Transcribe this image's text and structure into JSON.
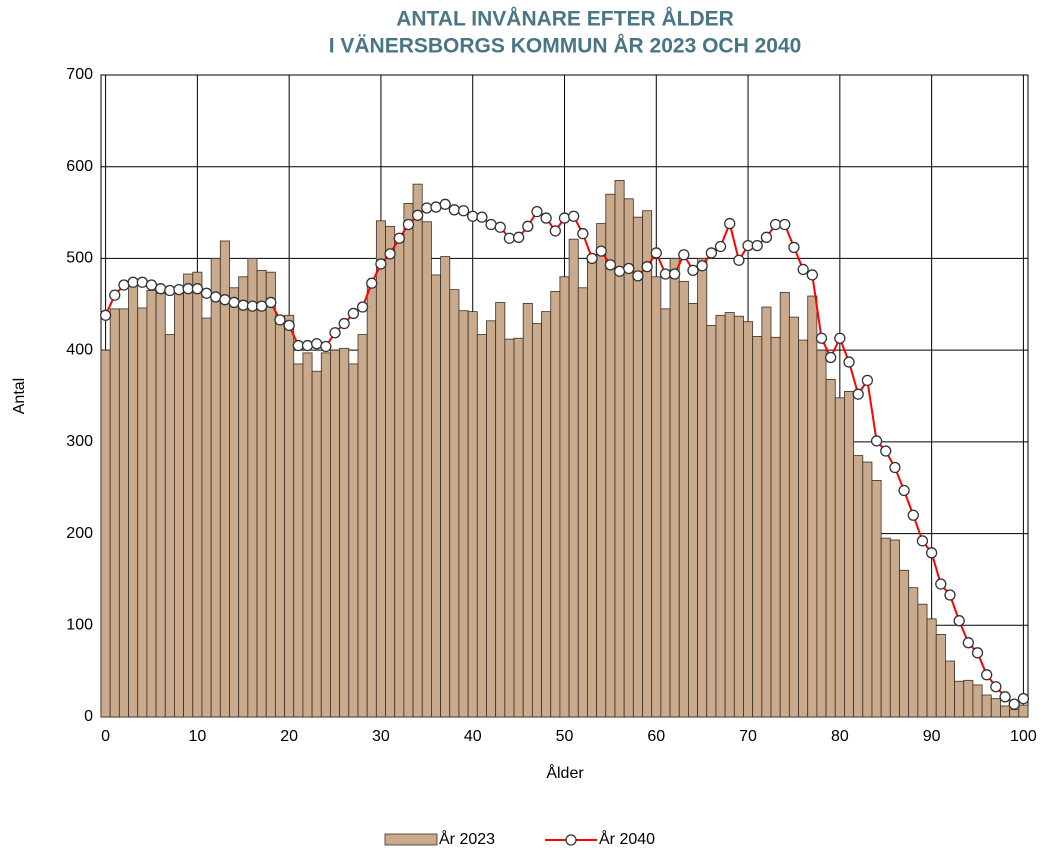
{
  "chart_data": {
    "type": "bar_line",
    "title": [
      "ANTAL INVÅNARE EFTER ÅLDER",
      "I VÄNERSBORGS KOMMUN ÅR 2023 OCH 2040"
    ],
    "x_label": "Ålder",
    "y_label": "Antal",
    "categories": [
      0,
      null,
      null,
      null,
      null,
      null,
      null,
      null,
      null,
      null,
      10,
      null,
      null,
      null,
      null,
      null,
      null,
      null,
      null,
      null,
      20,
      null,
      null,
      null,
      null,
      null,
      null,
      null,
      null,
      null,
      30,
      null,
      null,
      null,
      null,
      null,
      null,
      null,
      null,
      null,
      40,
      null,
      null,
      null,
      null,
      null,
      null,
      null,
      null,
      null,
      50,
      null,
      null,
      null,
      null,
      null,
      null,
      null,
      null,
      null,
      60,
      null,
      null,
      null,
      null,
      null,
      null,
      null,
      null,
      null,
      70,
      null,
      null,
      null,
      null,
      null,
      null,
      null,
      null,
      null,
      80,
      null,
      null,
      null,
      null,
      null,
      null,
      null,
      null,
      null,
      90,
      null,
      null,
      null,
      null,
      null,
      null,
      null,
      null,
      null,
      100
    ],
    "series": [
      {
        "name": "År 2023",
        "kind": "bar",
        "color": "#c9aa8c",
        "values": [
          400,
          445,
          445,
          470,
          446,
          465,
          462,
          417,
          466,
          483,
          485,
          435,
          500,
          519,
          468,
          480,
          500,
          487,
          485,
          435,
          438,
          385,
          397,
          377,
          397,
          400,
          402,
          385,
          417,
          475,
          541,
          535,
          520,
          560,
          581,
          540,
          482,
          502,
          466,
          443,
          442,
          417,
          432,
          452,
          412,
          413,
          451,
          429,
          442,
          464,
          480,
          521,
          468,
          500,
          538,
          570,
          585,
          565,
          545,
          552,
          480,
          445,
          500,
          475,
          451,
          500,
          427,
          438,
          441,
          437,
          431,
          415,
          447,
          414,
          463,
          436,
          411,
          459,
          400,
          368,
          348,
          355,
          285,
          278,
          258,
          195,
          193,
          160,
          141,
          123,
          107,
          90,
          61,
          39,
          40,
          35,
          24,
          20,
          12,
          8,
          13
        ]
      },
      {
        "name": "År 2040",
        "kind": "line",
        "color": "#ff0000",
        "values": [
          438,
          460,
          471,
          474,
          474,
          471,
          467,
          465,
          466,
          467,
          467,
          462,
          458,
          455,
          452,
          449,
          448,
          448,
          452,
          433,
          427,
          405,
          405,
          407,
          404,
          419,
          429,
          440,
          447,
          473,
          494,
          505,
          522,
          537,
          547,
          555,
          556,
          559,
          553,
          552,
          546,
          545,
          537,
          534,
          522,
          523,
          535,
          551,
          544,
          530,
          544,
          546,
          527,
          500,
          508,
          493,
          486,
          489,
          481,
          491,
          506,
          483,
          483,
          504,
          487,
          492,
          506,
          513,
          538,
          498,
          514,
          514,
          523,
          537,
          537,
          512,
          488,
          482,
          413,
          392,
          413,
          387,
          352,
          367,
          301,
          290,
          272,
          247,
          220,
          192,
          179,
          145,
          133,
          105,
          81,
          70,
          46,
          33,
          22,
          14,
          20
        ]
      }
    ],
    "ylim": [
      0,
      700
    ],
    "yticks": [
      0,
      100,
      200,
      300,
      400,
      500,
      600,
      700
    ],
    "grid": true,
    "legend": "bottom"
  }
}
